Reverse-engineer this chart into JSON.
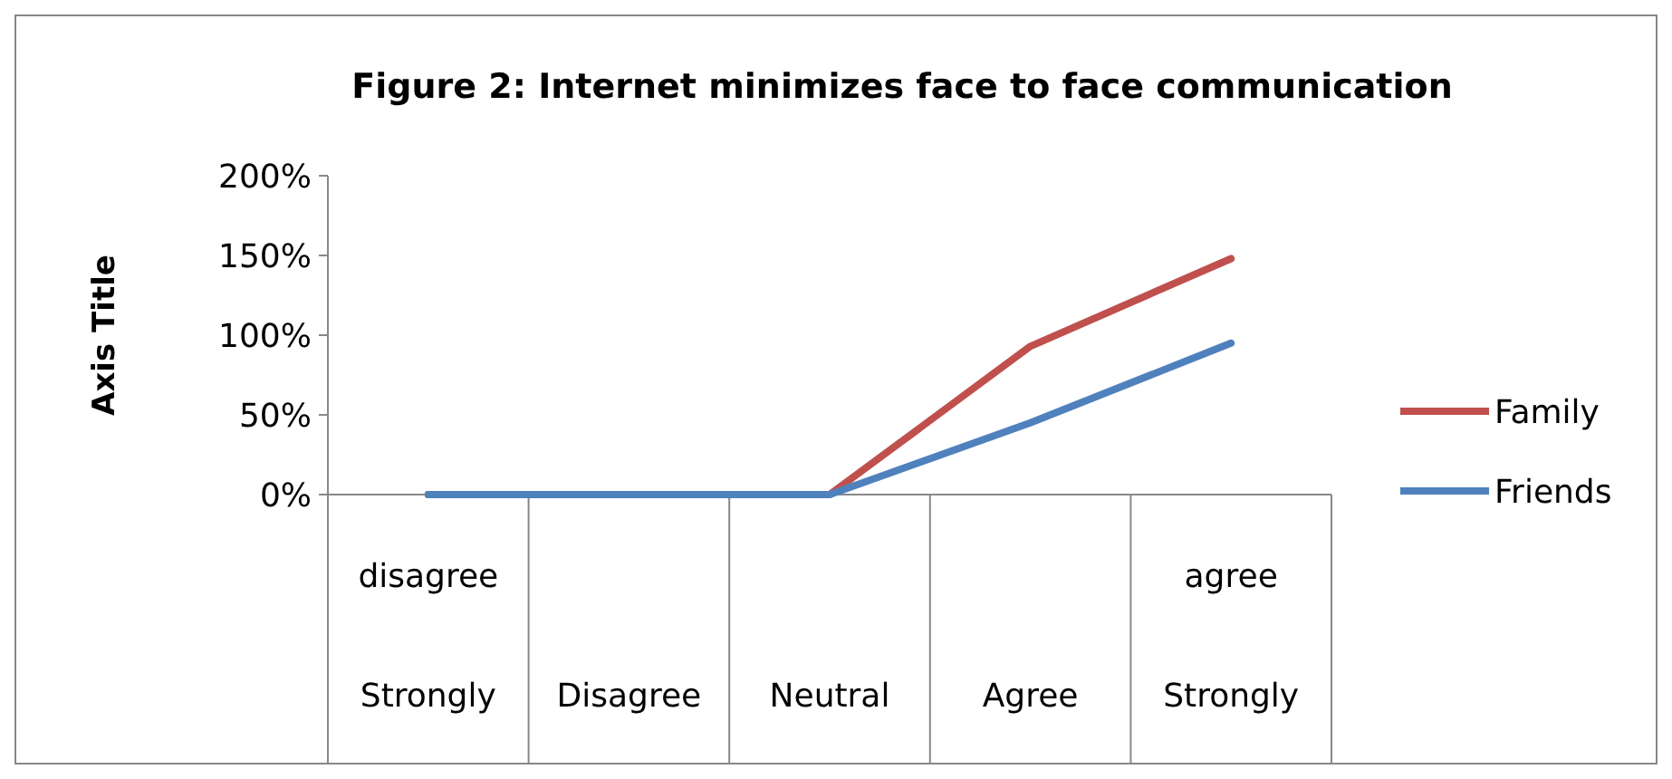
{
  "chart_data": {
    "type": "line",
    "title": "Figure 2: Internet minimizes face to face communication",
    "ylabel": "Axis Title",
    "categories": [
      "disagree\nStrongly",
      "\nDisagree",
      "\nNeutral",
      "\nAgree",
      "agree\nStrongly"
    ],
    "series": [
      {
        "name": "Family",
        "color": "#c0504d",
        "values": [
          0,
          0,
          0,
          93,
          148
        ]
      },
      {
        "name": "Friends",
        "color": "#4f81bd",
        "values": [
          0,
          0,
          0,
          45,
          95
        ]
      }
    ],
    "ylim": [
      0,
      200
    ],
    "yticks": [
      {
        "value": 0,
        "label": "0%"
      },
      {
        "value": 50,
        "label": "50%"
      },
      {
        "value": 100,
        "label": "100%"
      },
      {
        "value": 150,
        "label": "150%"
      },
      {
        "value": 200,
        "label": "200%"
      }
    ],
    "grid": false,
    "legend": "right",
    "marker": "none",
    "line_style": "solid"
  }
}
